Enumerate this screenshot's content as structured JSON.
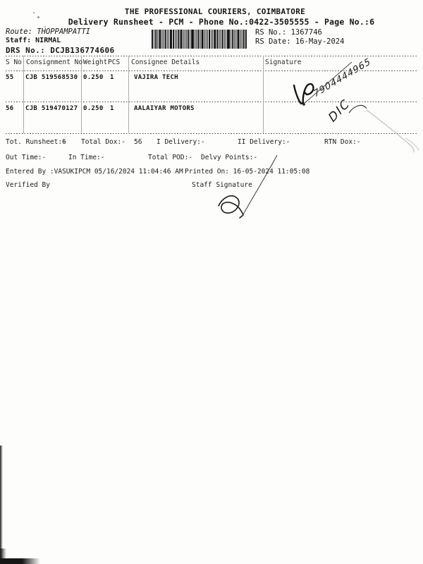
{
  "header": {
    "title": "THE PROFESSIONAL COURIERS, COIMBATORE",
    "subtitle": "Delivery Runsheet - PCM - Phone No.:0422-3505555 - Page No.:6"
  },
  "info": {
    "route_label": "Route:",
    "route_value": "THOPPAMPATTI",
    "staff_label": "Staff:",
    "staff_value": "NIRMAL",
    "drs_label": "DRS No.:",
    "drs_value": "DCJB136774606",
    "rs_no_label": "RS No.:",
    "rs_no_value": "1367746",
    "rs_date_label": "RS Date:",
    "rs_date_value": "16-May-2024"
  },
  "icons": {
    "barcode_icon": "code128-vertical-bars"
  },
  "table": {
    "columns": [
      "S No",
      "Consignment No",
      "Weight",
      "PCS",
      "Consignee Details",
      "Signature"
    ],
    "rows": [
      {
        "s_no": "55",
        "consignment_no": "CJB 519568530",
        "weight": "0.250",
        "pcs": "1",
        "consignee": "VAJIRA TECH",
        "signature_note": "7904444965"
      },
      {
        "s_no": "56",
        "consignment_no": "CJB 519470127",
        "weight": "0.250",
        "pcs": "1",
        "consignee": "AALAIYAR MOTORS",
        "signature_note": "DIC"
      }
    ]
  },
  "summary": {
    "tot_runsheet_label": "Tot. Runsheet:-",
    "tot_runsheet_value": "6",
    "total_dox_label": "Total Dox:-",
    "total_dox_value": "56",
    "i_delivery_label": "I Delivery:-",
    "ii_delivery_label": "II Delivery:-",
    "rtn_dox_label": "RTN Dox:-",
    "out_time_label": "Out Time:-",
    "in_time_label": "In Time:-",
    "total_pod_label": "Total POD:-",
    "delvy_points_label": "Delvy Points:-"
  },
  "footer": {
    "entered_by": "Entered By :VASUKIPCM 05/16/2024 11:04:46 AM",
    "printed_on": "Printed On: 16-05-2024 11:05:08",
    "verified_by_label": "Verified By",
    "staff_signature_label": "Staff Signature"
  }
}
